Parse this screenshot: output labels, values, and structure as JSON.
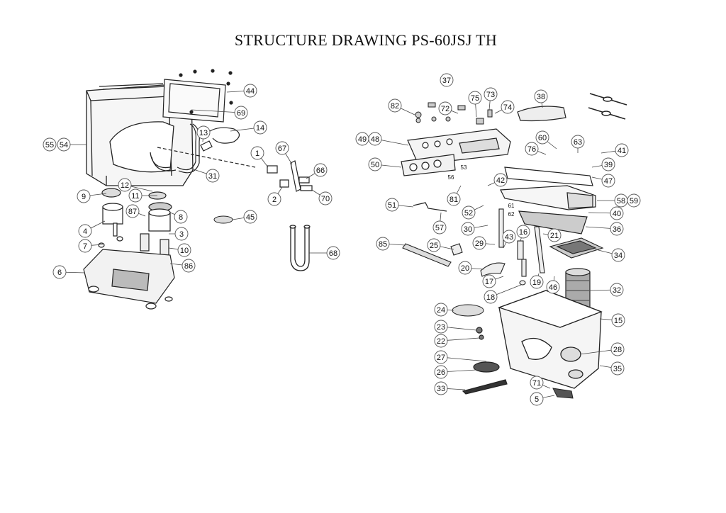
{
  "title": "STRUCTURE  DRAWING PS-60JSJ TH",
  "callouts": [
    "55",
    "54",
    "44",
    "69",
    "13",
    "14",
    "31",
    "1",
    "67",
    "66",
    "2",
    "70",
    "12",
    "9",
    "11",
    "87",
    "8",
    "4",
    "3",
    "7",
    "10",
    "86",
    "6",
    "45",
    "68",
    "37",
    "82",
    "75",
    "73",
    "72",
    "74",
    "38",
    "49",
    "48",
    "60",
    "63",
    "76",
    "41",
    "39",
    "50",
    "53",
    "56",
    "42",
    "47",
    "81",
    "58",
    "59",
    "51",
    "52",
    "61",
    "62",
    "57",
    "40",
    "36",
    "30",
    "16",
    "21",
    "85",
    "25",
    "43",
    "29",
    "34",
    "20",
    "17",
    "19",
    "46",
    "18",
    "32",
    "24",
    "15",
    "23",
    "22",
    "27",
    "28",
    "35",
    "26",
    "71",
    "33",
    "5"
  ],
  "small_labels": [
    "53",
    "56",
    "61",
    "62"
  ]
}
